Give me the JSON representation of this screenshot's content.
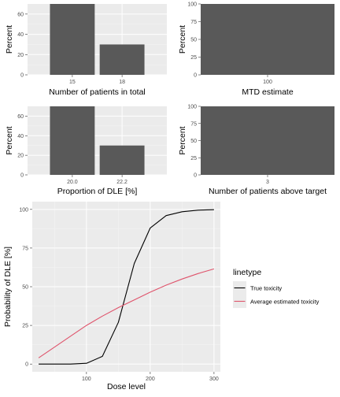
{
  "colors": {
    "panel_bg": "#ebebeb",
    "grid_major": "#ffffff",
    "grid_minor": "#f5f5f5",
    "bar_fill": "#595959",
    "tick_text": "#4d4d4d",
    "axis_title": "#000000",
    "true_line": "#000000",
    "estimated_line": "#df536b"
  },
  "chart_data": [
    {
      "type": "bar",
      "categories": [
        "15",
        "18"
      ],
      "values": [
        70,
        30
      ],
      "xlabel": "Number of patients in total",
      "ylabel": "Percent",
      "ylim": [
        0,
        70
      ],
      "yticks": [
        0,
        20,
        40,
        60
      ],
      "grid": true
    },
    {
      "type": "bar",
      "categories": [
        "100"
      ],
      "values": [
        100
      ],
      "xlabel": "MTD estimate",
      "ylabel": "Percent",
      "ylim": [
        0,
        100
      ],
      "yticks": [
        0,
        25,
        50,
        75,
        100
      ],
      "grid": true
    },
    {
      "type": "bar",
      "categories": [
        "20.0",
        "22.2"
      ],
      "values": [
        70,
        30
      ],
      "xlabel": "Proportion of DLE [%]",
      "ylabel": "Percent",
      "ylim": [
        0,
        70
      ],
      "yticks": [
        0,
        20,
        40,
        60
      ],
      "grid": true
    },
    {
      "type": "bar",
      "categories": [
        "3"
      ],
      "values": [
        100
      ],
      "xlabel": "Number of patients above target",
      "ylabel": "Percent",
      "ylim": [
        0,
        100
      ],
      "yticks": [
        0,
        25,
        50,
        75,
        100
      ],
      "grid": true
    },
    {
      "type": "line",
      "xlabel": "Dose level",
      "ylabel": "Probability of DLE [%]",
      "xlim": [
        15,
        310
      ],
      "ylim": [
        -5,
        105
      ],
      "xticks": [
        100,
        200,
        300
      ],
      "yticks": [
        0,
        25,
        50,
        75,
        100
      ],
      "grid": true,
      "legend": {
        "title": "linetype",
        "position": "right"
      },
      "series": [
        {
          "name": "True toxicity",
          "color": "#000000",
          "x": [
            25,
            50,
            75,
            100,
            125,
            150,
            175,
            200,
            225,
            250,
            275,
            300
          ],
          "y": [
            0,
            0,
            0,
            0.5,
            5,
            27,
            65,
            88,
            96,
            98.5,
            99.5,
            99.8
          ]
        },
        {
          "name": "Average estimated toxicity",
          "color": "#df536b",
          "x": [
            25,
            50,
            75,
            100,
            125,
            150,
            175,
            200,
            225,
            250,
            275,
            300
          ],
          "y": [
            4,
            11,
            18,
            25,
            31,
            36.5,
            41.5,
            46.5,
            51,
            55,
            58.5,
            61.5
          ]
        }
      ]
    }
  ]
}
